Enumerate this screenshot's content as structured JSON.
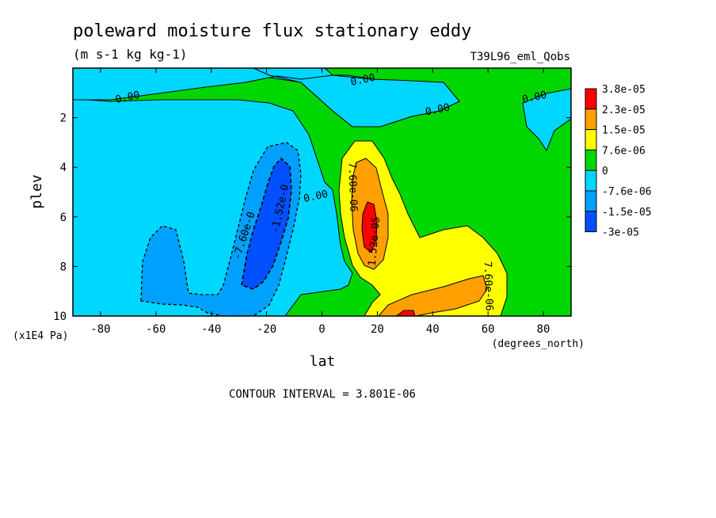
{
  "chart_data": {
    "type": "heatmap",
    "title": "poleward moisture flux stationary eddy",
    "subtitle": "(m s-1 kg kg-1)",
    "run_label": "T39L96_eml_Qobs",
    "xlabel": "lat",
    "x_unit": "(degrees_north)",
    "ylabel": "plev",
    "y_unit": "(x1E4 Pa)",
    "xlim": [
      -90,
      90
    ],
    "ylim": [
      10,
      0
    ],
    "x_ticks": [
      "-80",
      "-60",
      "-40",
      "-20",
      "0",
      "20",
      "40",
      "60",
      "80"
    ],
    "y_ticks": [
      "2",
      "4",
      "6",
      "8",
      "10"
    ],
    "footer": "CONTOUR INTERVAL = 3.801E-06",
    "colorbar": [
      {
        "label": "3.8e-05",
        "color": "#ff0000"
      },
      {
        "label": "2.3e-05",
        "color": "#ffa000"
      },
      {
        "label": "1.5e-05",
        "color": "#ffff00"
      },
      {
        "label": "7.6e-06",
        "color": "#00d700"
      },
      {
        "label": "0",
        "color": "#00d7ff"
      },
      {
        "label": "-7.6e-06",
        "color": "#00a0ff"
      },
      {
        "label": "-1.5e-05",
        "color": "#0050ff"
      },
      {
        "label": "-3e-05",
        "color": null
      }
    ],
    "contour_labels": [
      {
        "text": "0.00",
        "lat": -70,
        "plev": 1.3
      },
      {
        "text": "0.00",
        "lat": 15,
        "plev": 0.6
      },
      {
        "text": "0.00",
        "lat": 42,
        "plev": 1.8
      },
      {
        "text": "0.00",
        "lat": 77,
        "plev": 1.3
      },
      {
        "text": "0.00",
        "lat": -2,
        "plev": 5.3
      },
      {
        "text": "-1.52e-0",
        "lat": -14,
        "plev": 5.7
      },
      {
        "text": "-7.60e-0",
        "lat": -27,
        "plev": 6.8
      },
      {
        "text": "7.60e-06",
        "lat": 10,
        "plev": 4.8
      },
      {
        "text": "1.52e-05",
        "lat": 20,
        "plev": 7.0
      },
      {
        "text": "7.60e-06",
        "lat": 59,
        "plev": 8.8
      }
    ]
  }
}
